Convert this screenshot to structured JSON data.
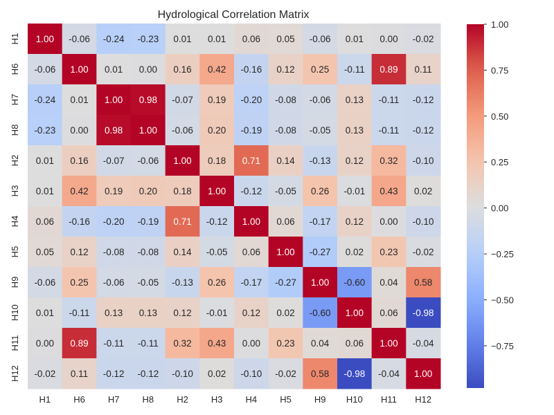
{
  "chart_data": {
    "type": "heatmap",
    "title": "Hydrological Correlation Matrix",
    "xlabel": "",
    "ylabel": "",
    "labels": [
      "H1",
      "H6",
      "H7",
      "H8",
      "H2",
      "H3",
      "H4",
      "H5",
      "H9",
      "H10",
      "H11",
      "H12"
    ],
    "matrix": [
      [
        1.0,
        -0.06,
        -0.24,
        -0.23,
        0.01,
        0.01,
        0.06,
        0.05,
        -0.06,
        0.01,
        -0.0,
        -0.02
      ],
      [
        -0.06,
        1.0,
        0.01,
        0.0,
        0.16,
        0.42,
        -0.16,
        0.12,
        0.25,
        -0.11,
        0.89,
        0.11
      ],
      [
        -0.24,
        0.01,
        1.0,
        0.98,
        -0.07,
        0.19,
        -0.2,
        -0.08,
        -0.06,
        0.13,
        -0.11,
        -0.12
      ],
      [
        -0.23,
        0.0,
        0.98,
        1.0,
        -0.06,
        0.2,
        -0.19,
        -0.08,
        -0.05,
        0.13,
        -0.11,
        -0.12
      ],
      [
        0.01,
        0.16,
        -0.07,
        -0.06,
        1.0,
        0.18,
        0.71,
        0.14,
        -0.13,
        0.12,
        0.32,
        -0.1
      ],
      [
        0.01,
        0.42,
        0.19,
        0.2,
        0.18,
        1.0,
        -0.12,
        -0.05,
        0.26,
        -0.01,
        0.43,
        0.02
      ],
      [
        0.06,
        -0.16,
        -0.2,
        -0.19,
        0.71,
        -0.12,
        1.0,
        0.06,
        -0.17,
        0.12,
        0.0,
        -0.1
      ],
      [
        0.05,
        0.12,
        -0.08,
        -0.08,
        0.14,
        -0.05,
        0.06,
        1.0,
        -0.27,
        0.02,
        0.23,
        -0.02
      ],
      [
        -0.06,
        0.25,
        -0.06,
        -0.05,
        -0.13,
        0.26,
        -0.17,
        -0.27,
        1.0,
        -0.6,
        0.04,
        0.58
      ],
      [
        0.01,
        -0.11,
        0.13,
        0.13,
        0.12,
        -0.01,
        0.12,
        0.02,
        -0.6,
        1.0,
        0.06,
        -0.98
      ],
      [
        -0.0,
        0.89,
        -0.11,
        -0.11,
        0.32,
        0.43,
        0.0,
        0.23,
        0.04,
        0.06,
        1.0,
        -0.04
      ],
      [
        -0.02,
        0.11,
        -0.12,
        -0.12,
        -0.1,
        0.02,
        -0.1,
        -0.02,
        0.58,
        -0.98,
        -0.04,
        1.0
      ]
    ],
    "value_format": "0.00",
    "colormap": "coolwarm",
    "color_range": [
      -0.98,
      1.0
    ],
    "colorbar_ticks": [
      1.0,
      0.75,
      0.5,
      0.25,
      0.0,
      -0.25,
      -0.5,
      -0.75
    ],
    "colorbar_tick_labels": [
      "1.00",
      "0.75",
      "0.50",
      "0.25",
      "0.00",
      "−0.25",
      "−0.50",
      "−0.75"
    ]
  }
}
